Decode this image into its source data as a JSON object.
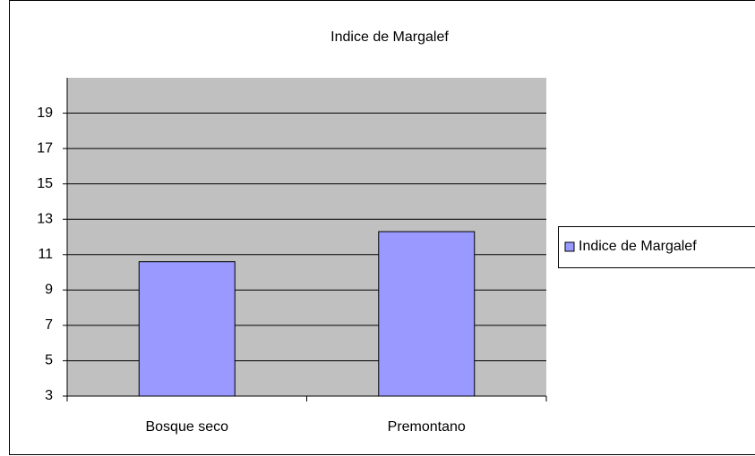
{
  "chart_data": {
    "type": "bar",
    "title": "Indice de Margalef",
    "categories": [
      "Bosque seco",
      "Premontano"
    ],
    "series": [
      {
        "name": "Indice de Margalef",
        "color": "#9999ff",
        "values": [
          10.6,
          12.3
        ]
      }
    ],
    "ylim": [
      3,
      21
    ],
    "yticks": [
      3,
      5,
      7,
      9,
      11,
      13,
      15,
      17,
      19
    ],
    "grid": true,
    "legend": "right"
  }
}
